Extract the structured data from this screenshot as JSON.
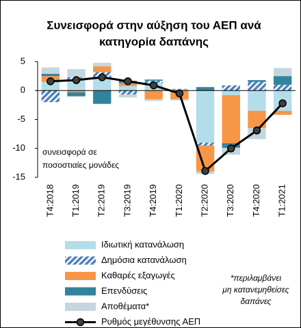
{
  "chart_data": {
    "type": "stacked-bar-line",
    "title_lines": [
      "Συνεισφορά στην αύξηση του ΑΕΠ ανά",
      "κατηγορία δαπάνης"
    ],
    "annotation_lines": [
      "συνεισφορά σε",
      "ποσοστιαίες μονάδες"
    ],
    "footnote_lines": [
      "*περιλαμβάνει",
      "μη κατανεμηθείσες",
      "δαπάνες"
    ],
    "categories": [
      "T4:2018",
      "T1:2019",
      "T2:2019",
      "T3:2019",
      "T4:2019",
      "T1:2020",
      "T2:2020",
      "T3:2020",
      "T4:2020",
      "T1:2021"
    ],
    "series": [
      {
        "name": "Ιδιωτική κατανάλωση",
        "color": "#b3dde9",
        "values": [
          1.5,
          1.8,
          2.0,
          0.8,
          1.3,
          0.2,
          -9.0,
          -0.8,
          -3.5,
          -3.5
        ]
      },
      {
        "name": "Δημόσια κατανάλωση",
        "color": "#4f81bd",
        "pattern": "diagonal",
        "values": [
          -2.0,
          0.5,
          1.2,
          -0.7,
          0.4,
          0.1,
          -0.5,
          0.9,
          1.5,
          1.0
        ]
      },
      {
        "name": "Καθαρές εξαγωγές",
        "color": "#f79646",
        "values": [
          1.0,
          -0.3,
          1.0,
          0.5,
          -1.5,
          -1.5,
          -4.5,
          -8.3,
          -3.0,
          -0.7
        ]
      },
      {
        "name": "Επενδύσεις",
        "color": "#31849b",
        "values": [
          0.4,
          -0.7,
          -2.3,
          0.4,
          0.2,
          0.0,
          0.6,
          -0.8,
          0.3,
          1.5
        ]
      },
      {
        "name": "Αποθέματα*",
        "color": "#c5d6de",
        "values": [
          1.1,
          1.4,
          0.6,
          -0.5,
          -0.3,
          -0.2,
          -0.4,
          -1.2,
          -1.9,
          1.4
        ]
      }
    ],
    "line": {
      "name": "Ρυθμός μεγέθυνσης ΑΕΠ",
      "color": "#000000",
      "values": [
        1.6,
        1.8,
        2.3,
        1.6,
        0.9,
        -0.5,
        -13.9,
        -10.0,
        -6.9,
        -2.2
      ]
    },
    "ylim": [
      -15,
      5
    ],
    "yticks": [
      5,
      0,
      -5,
      -10,
      -15
    ]
  }
}
